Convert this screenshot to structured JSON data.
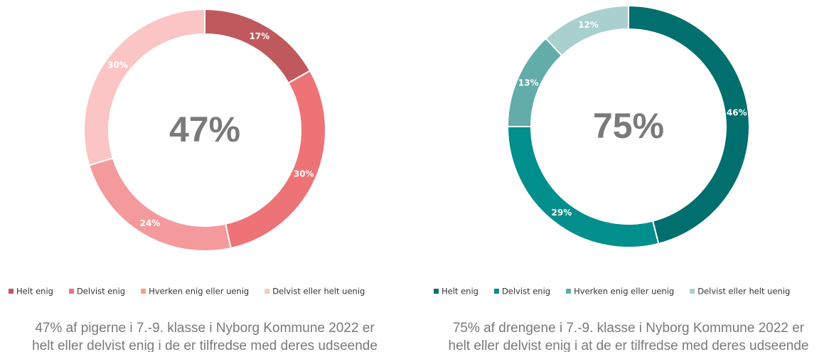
{
  "chart_data": [
    {
      "type": "donut",
      "center_label": "47%",
      "categories": [
        "Helt enig",
        "Delvist enig",
        "Hverken enig eller uenig",
        "Delvist eller helt uenig"
      ],
      "values": [
        17,
        30,
        24,
        30
      ],
      "value_labels": [
        "17%",
        "30%",
        "24%",
        "30%"
      ],
      "colors": [
        "#c0595e",
        "#ee7377",
        "#f59a9c",
        "#fbc4c5"
      ],
      "caption": [
        "47% af pigerne i 7.-9. klasse i Nyborg Kommune 2022 er",
        "helt eller delvist enig i de er tilfredse med deres udseende"
      ]
    },
    {
      "type": "donut",
      "center_label": "75%",
      "categories": [
        "Helt enig",
        "Delvist enig",
        "Hverken enig eller uenig",
        "Delvist eller helt uenig"
      ],
      "values": [
        46,
        29,
        13,
        12
      ],
      "value_labels": [
        "46%",
        "29%",
        "13%",
        "12%"
      ],
      "colors": [
        "#006f6e",
        "#008f8c",
        "#62aca9",
        "#a9d0cf"
      ],
      "caption": [
        "75% af drengene i 7.-9. klasse i Nyborg Kommune 2022 er",
        "helt eller delvist enig i at de er tilfredse med deres udseende"
      ]
    }
  ]
}
